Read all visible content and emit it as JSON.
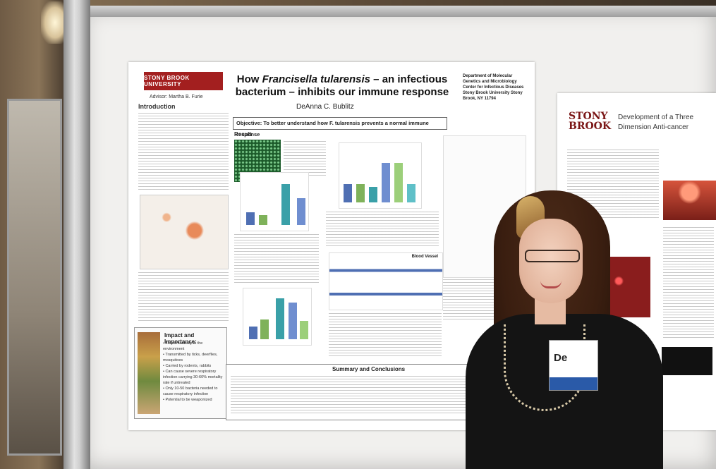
{
  "poster": {
    "logo": "STONY BROOK UNIVERSITY",
    "advisor": "Advisor: Martha B. Furie",
    "title_pre": "How ",
    "title_italic": "Francisella tularensis",
    "title_post": " – an infectious bacterium – inhibits our immune response",
    "author": "DeAnna C. Bublitz",
    "department": "Department of Molecular Genetics and Microbiology Center for Infectious Diseases Stony Brook University Stony Brook, NY 11794",
    "intro_heading": "Introduction",
    "objective": "Objective:   To better understand how F. tularensis prevents a normal immune response",
    "result_heading": "Result",
    "impact_heading": "Impact and Importance:",
    "impact_items": [
      "• Found naturally in the environment",
      "• Transmitted by ticks, deerflies, mosquitoes",
      "• Carried by rodents, rabbits",
      "• Can cause severe respiratory infection carrying 30-60% mortality rate if untreated",
      "• Only 10-50 bacteria needed to cause respiratory infection",
      "• Potential to be weaponized"
    ],
    "summary_heading": "Summary and Conclusions",
    "pathway_label": "Blood Vessel"
  },
  "poster2": {
    "logo_line1": "STONY",
    "logo_line2": "BROOK",
    "title": "Development of a Three Dimension Anti-cancer"
  },
  "badge": {
    "name": "De"
  },
  "colors": {
    "sbu_red": "#a31f1f",
    "bar_blue": "#4f6fb3",
    "bar_green": "#7fb25a"
  }
}
